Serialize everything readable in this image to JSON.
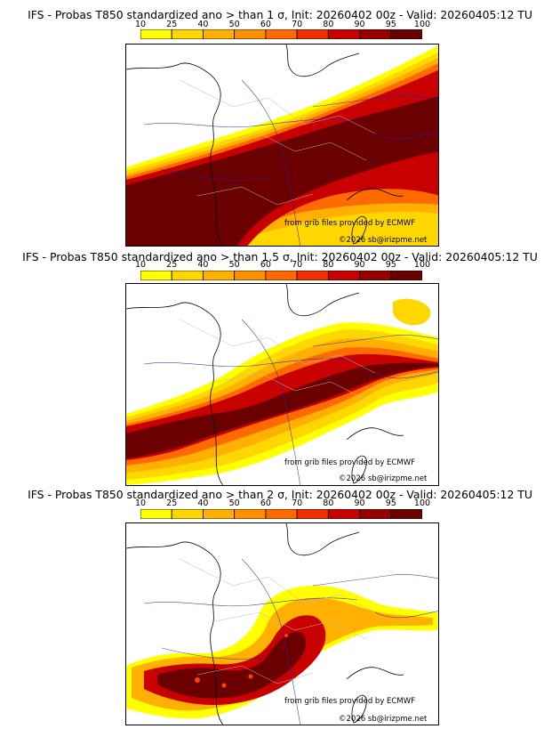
{
  "panels": [
    {
      "title": "IFS - Probas T850  standardized ano > than 1 σ, Init: 20260402 00z - Valid: 20260405:12 TU",
      "threshold_sigma": 1,
      "credit_source": "from grib files provided by ECMWF",
      "credit_copyright": "©2026 sb@irizpme.net"
    },
    {
      "title": "IFS - Probas T850  standardized ano > than 1.5 σ, Init: 20260402 00z - Valid: 20260405:12 TU",
      "threshold_sigma": 1.5,
      "credit_source": "from grib files provided by ECMWF",
      "credit_copyright": "©2026 sb@irizpme.net"
    },
    {
      "title": "IFS - Probas T850  standardized ano > than 2 σ, Init: 20260402 00z - Valid: 20260405:12 TU",
      "threshold_sigma": 2,
      "credit_source": "from grib files provided by ECMWF",
      "credit_copyright": "©2026 sb@irizpme.net"
    }
  ],
  "colorbar": {
    "ticks": [
      "10",
      "25",
      "40",
      "50",
      "60",
      "70",
      "80",
      "90",
      "95",
      "100"
    ],
    "colors": [
      "#ffff00",
      "#ffd700",
      "#ffb000",
      "#ff9000",
      "#ff6a00",
      "#f03000",
      "#c80000",
      "#980000",
      "#6a0000"
    ]
  }
}
